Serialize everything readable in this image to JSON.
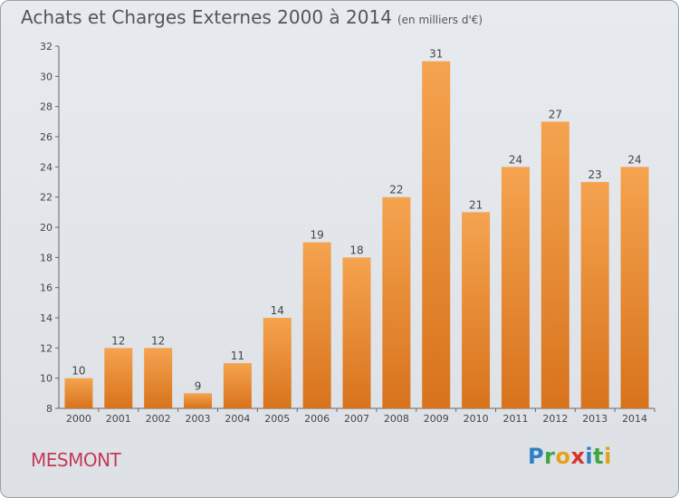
{
  "header": {
    "title": "Achats et Charges Externes 2000 à 2014",
    "unit": "(en milliers d'€)"
  },
  "footer": {
    "commune": "MESMONT",
    "logo_letters": [
      {
        "ch": "P",
        "color": "#2f7fc4"
      },
      {
        "ch": "r",
        "color": "#3fa63f"
      },
      {
        "ch": "o",
        "color": "#e4a21c"
      },
      {
        "ch": "x",
        "color": "#d9342b"
      },
      {
        "ch": "i",
        "color": "#2f7fc4"
      },
      {
        "ch": "t",
        "color": "#3fa63f"
      },
      {
        "ch": "i",
        "color": "#e4a21c"
      }
    ]
  },
  "chart_data": {
    "type": "bar",
    "title": "Achats et Charges Externes 2000 à 2014",
    "subtitle": "(en milliers d'€)",
    "categories": [
      "2000",
      "2001",
      "2002",
      "2003",
      "2004",
      "2005",
      "2006",
      "2007",
      "2008",
      "2009",
      "2010",
      "2011",
      "2012",
      "2013",
      "2014"
    ],
    "values": [
      10,
      12,
      12,
      9,
      11,
      14,
      19,
      18,
      22,
      31,
      21,
      24,
      27,
      23,
      24
    ],
    "ylim": [
      8,
      32
    ],
    "yticks": [
      8,
      10,
      12,
      14,
      16,
      18,
      20,
      22,
      24,
      26,
      28,
      30,
      32
    ],
    "grid": false,
    "bar_color_top": "#f5a34f",
    "bar_color_bottom": "#d8731c"
  }
}
